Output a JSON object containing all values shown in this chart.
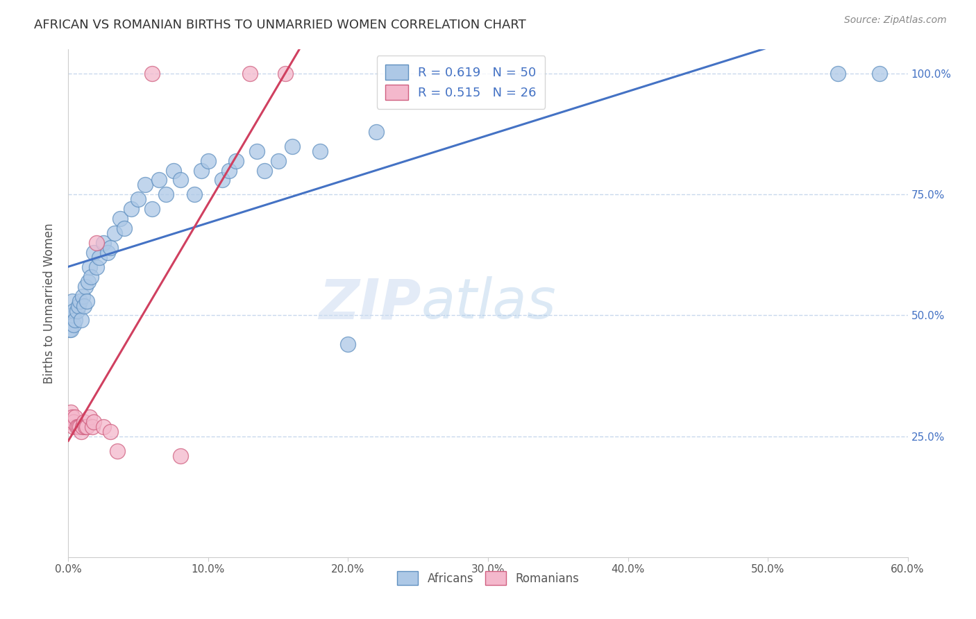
{
  "title": "AFRICAN VS ROMANIAN BIRTHS TO UNMARRIED WOMEN CORRELATION CHART",
  "source": "Source: ZipAtlas.com",
  "ylabel": "Births to Unmarried Women",
  "watermark": "ZIPatlas",
  "xlim": [
    0.0,
    0.6
  ],
  "ylim": [
    0.0,
    1.05
  ],
  "xtick_labels": [
    "0.0%",
    "",
    "",
    "",
    "",
    "",
    "10.0%",
    "",
    "",
    "",
    "",
    "",
    "20.0%",
    "",
    "",
    "",
    "",
    "",
    "30.0%",
    "",
    "",
    "",
    "",
    "",
    "40.0%",
    "",
    "",
    "",
    "",
    "",
    "50.0%",
    "",
    "",
    "",
    "",
    "",
    "60.0%"
  ],
  "xtick_values": [
    0.0,
    0.1,
    0.2,
    0.3,
    0.4,
    0.5,
    0.6
  ],
  "ytick_labels_right": [
    "25.0%",
    "50.0%",
    "75.0%",
    "100.0%"
  ],
  "ytick_values": [
    0.25,
    0.5,
    0.75,
    1.0
  ],
  "african_color": "#adc8e6",
  "romanian_color": "#f4b8cc",
  "african_edge": "#6090c0",
  "romanian_edge": "#d06080",
  "line_african_color": "#4472c4",
  "line_romanian_color": "#d04060",
  "R_african": 0.619,
  "N_african": 50,
  "R_romanian": 0.515,
  "N_romanian": 26,
  "africans_x": [
    0.001,
    0.002,
    0.003,
    0.003,
    0.004,
    0.004,
    0.005,
    0.006,
    0.007,
    0.008,
    0.009,
    0.01,
    0.011,
    0.012,
    0.013,
    0.014,
    0.015,
    0.016,
    0.018,
    0.02,
    0.022,
    0.025,
    0.028,
    0.03,
    0.033,
    0.037,
    0.04,
    0.045,
    0.05,
    0.055,
    0.06,
    0.065,
    0.07,
    0.075,
    0.08,
    0.09,
    0.095,
    0.1,
    0.11,
    0.115,
    0.12,
    0.135,
    0.14,
    0.15,
    0.16,
    0.18,
    0.2,
    0.22,
    0.55,
    0.58
  ],
  "africans_y": [
    0.47,
    0.47,
    0.5,
    0.53,
    0.48,
    0.51,
    0.49,
    0.51,
    0.52,
    0.53,
    0.49,
    0.54,
    0.52,
    0.56,
    0.53,
    0.57,
    0.6,
    0.58,
    0.63,
    0.6,
    0.62,
    0.65,
    0.63,
    0.64,
    0.67,
    0.7,
    0.68,
    0.72,
    0.74,
    0.77,
    0.72,
    0.78,
    0.75,
    0.8,
    0.78,
    0.75,
    0.8,
    0.82,
    0.78,
    0.8,
    0.82,
    0.84,
    0.8,
    0.82,
    0.85,
    0.84,
    0.44,
    0.88,
    1.0,
    1.0
  ],
  "romanians_x": [
    0.001,
    0.002,
    0.002,
    0.003,
    0.004,
    0.004,
    0.005,
    0.006,
    0.007,
    0.008,
    0.009,
    0.01,
    0.011,
    0.012,
    0.013,
    0.015,
    0.017,
    0.018,
    0.02,
    0.025,
    0.03,
    0.035,
    0.06,
    0.08,
    0.13,
    0.155
  ],
  "romanians_y": [
    0.28,
    0.28,
    0.3,
    0.29,
    0.27,
    0.28,
    0.29,
    0.27,
    0.27,
    0.27,
    0.26,
    0.27,
    0.28,
    0.27,
    0.27,
    0.29,
    0.27,
    0.28,
    0.65,
    0.27,
    0.26,
    0.22,
    1.0,
    0.21,
    1.0,
    1.0
  ],
  "grid_color": "#c8d8ec",
  "bg_color": "#ffffff",
  "title_color": "#333333",
  "axis_label_color": "#555555",
  "ytick_color": "#4472c4"
}
